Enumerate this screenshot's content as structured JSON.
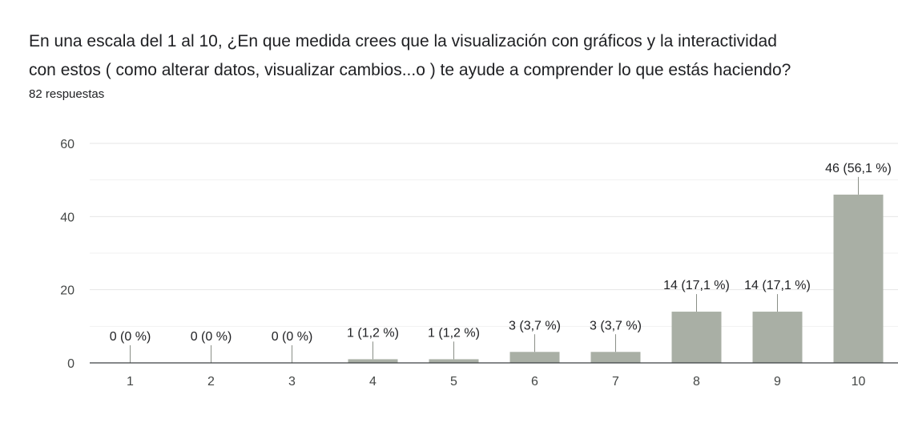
{
  "question": {
    "line1": "En una escala del 1 al 10, ¿En que medida crees que la visualización con gráficos y la interactividad",
    "line2": "con estos ( como alterar datos, visualizar cambios...o ) te ayude a comprender lo que estás haciendo?",
    "responses": "82 respuestas"
  },
  "colors": {
    "bar": "#a9afa5",
    "grid": "#e6e6e6",
    "axis": "#3c4043",
    "leader": "#8a8f87"
  },
  "chart_data": {
    "type": "bar",
    "categories": [
      "1",
      "2",
      "3",
      "4",
      "5",
      "6",
      "7",
      "8",
      "9",
      "10"
    ],
    "values": [
      0,
      0,
      0,
      1,
      1,
      3,
      3,
      14,
      14,
      46
    ],
    "data_labels": [
      "0 (0 %)",
      "0 (0 %)",
      "0 (0 %)",
      "1 (1,2 %)",
      "1 (1,2 %)",
      "3 (3,7 %)",
      "3 (3,7 %)",
      "14 (17,1 %)",
      "14 (17,1 %)",
      "46 (56,1 %)"
    ],
    "yticks": [
      0,
      20,
      40,
      60
    ],
    "ylim": [
      0,
      60
    ],
    "grid": true
  }
}
